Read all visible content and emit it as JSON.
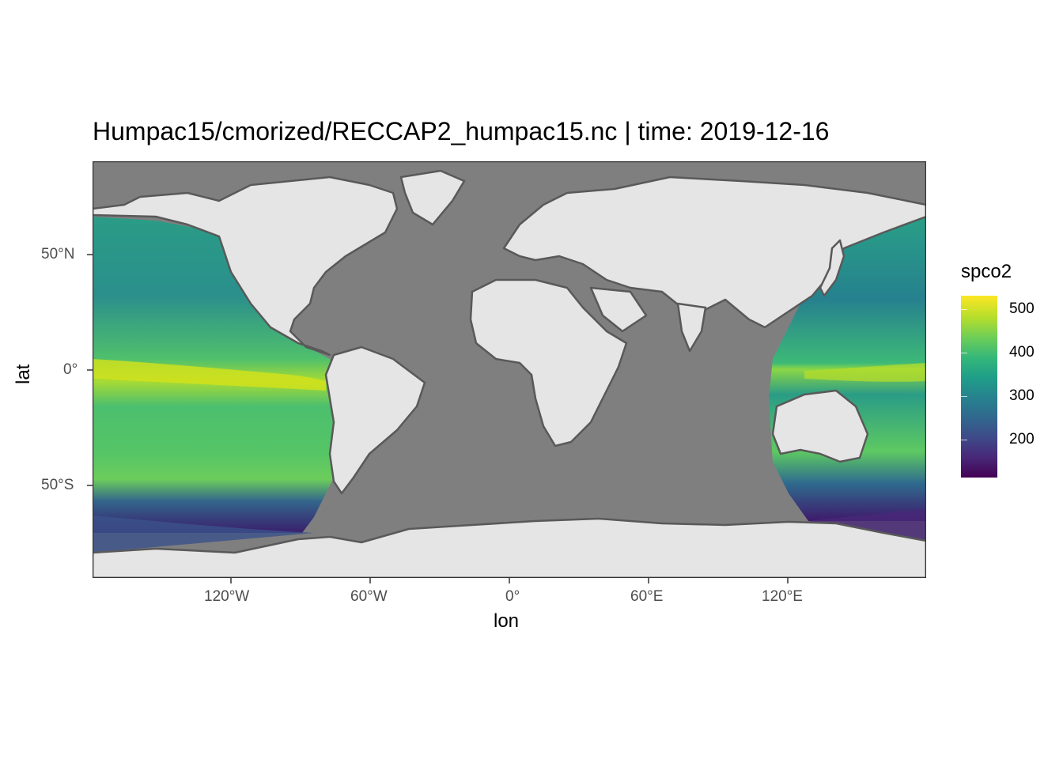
{
  "title": "Humpac15/cmorized/RECCAP2_humpac15.nc | time:  2019-12-16",
  "axes": {
    "x_title": "lon",
    "y_title": "lat",
    "x_ticks": [
      "120°W",
      "60°W",
      "0°",
      "60°E",
      "120°E"
    ],
    "y_ticks": [
      "50°N",
      "0°",
      "50°S"
    ]
  },
  "legend": {
    "title": "spco2",
    "labels": [
      "500",
      "400",
      "300",
      "200"
    ],
    "palette": "viridis"
  },
  "colors": {
    "land": "#e5e5e5",
    "missing": "#7f7f7f",
    "border": "#595959"
  },
  "chart_data": {
    "type": "heatmap",
    "title": "Humpac15/cmorized/RECCAP2_humpac15.nc | time:  2019-12-16",
    "xlabel": "lon",
    "ylabel": "lat",
    "xlim": [
      -180,
      180
    ],
    "ylim": [
      -90,
      90
    ],
    "x_ticks": [
      -120,
      -60,
      0,
      60,
      120
    ],
    "y_ticks": [
      50,
      0,
      -50
    ],
    "colorbar": {
      "name": "spco2",
      "min": 110,
      "max": 530,
      "ticks": [
        200,
        300,
        400,
        500
      ]
    },
    "grid": false
  }
}
